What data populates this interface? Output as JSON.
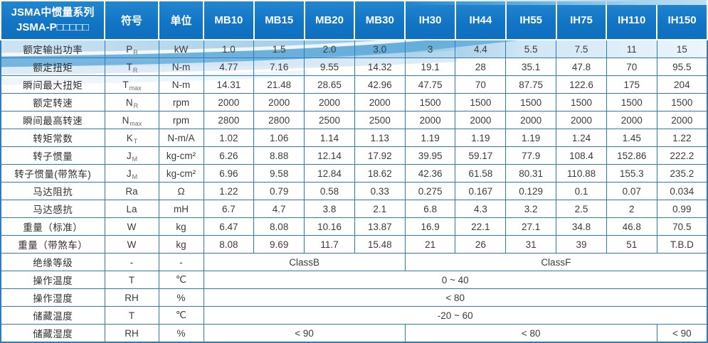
{
  "header": {
    "title_line1": "JSMA中惯量系列",
    "title_line2": "JSMA-P□□□□□",
    "symbol_col": "符号",
    "unit_col": "单位",
    "models": [
      "MB10",
      "MB15",
      "MB20",
      "MB30",
      "IH30",
      "IH44",
      "IH55",
      "IH75",
      "IH110",
      "IH150"
    ]
  },
  "colors": {
    "header_blue": "#1174c4",
    "grid_blue": "#2e7cbe",
    "swoosh_blue": "#57a5d8",
    "swoosh_light": "#cde3f2"
  },
  "spec_rows": [
    {
      "label": "额定输出功率",
      "sym": "P",
      "sub": "R",
      "unit": "kW",
      "values": [
        "1.0",
        "1.5",
        "2.0",
        "3.0",
        "3",
        "4.4",
        "5.5",
        "7.5",
        "11",
        "15"
      ]
    },
    {
      "label": "额定扭矩",
      "sym": "T",
      "sub": "R",
      "unit": "N-m",
      "values": [
        "4.77",
        "7.16",
        "9.55",
        "14.32",
        "19.1",
        "28",
        "35.1",
        "47.8",
        "70",
        "95.5"
      ]
    },
    {
      "label": "瞬间最大扭矩",
      "sym": "T",
      "sub": "max",
      "unit": "N-m",
      "values": [
        "14.31",
        "21.48",
        "28.65",
        "42.96",
        "47.75",
        "70",
        "87.75",
        "122.6",
        "175",
        "204"
      ]
    },
    {
      "label": "额定转速",
      "sym": "N",
      "sub": "R",
      "unit": "rpm",
      "values": [
        "2000",
        "2000",
        "2000",
        "2000",
        "1500",
        "1500",
        "1500",
        "1500",
        "1500",
        "1500"
      ]
    },
    {
      "label": "瞬间最高转速",
      "sym": "N",
      "sub": "max",
      "unit": "rpm",
      "values": [
        "2800",
        "2800",
        "2500",
        "2500",
        "2000",
        "2000",
        "2000",
        "2000",
        "2000",
        "2000"
      ]
    },
    {
      "label": "转矩常数",
      "sym": "K",
      "sub": "T",
      "unit": "N-m/A",
      "values": [
        "1.02",
        "1.06",
        "1.14",
        "1.13",
        "1.19",
        "1.19",
        "1.19",
        "1.24",
        "1.45",
        "1.22"
      ]
    },
    {
      "label": "转子惯量",
      "sym": "J",
      "sub": "M",
      "unit": "kg-cm²",
      "values": [
        "6.26",
        "8.88",
        "12.14",
        "17.92",
        "39.95",
        "59.17",
        "77.9",
        "108.4",
        "152.86",
        "222.2"
      ]
    },
    {
      "label": "转子惯量(带煞车)",
      "sym": "J",
      "sub": "M",
      "unit": "kg-cm²",
      "values": [
        "6.96",
        "9.58",
        "12.84",
        "18.62",
        "42.36",
        "61.58",
        "80.31",
        "110.88",
        "155.3",
        "235.2"
      ]
    },
    {
      "label": "马达阻抗",
      "sym": "Ra",
      "sub": "",
      "unit": "Ω",
      "values": [
        "1.22",
        "0.79",
        "0.58",
        "0.33",
        "0.275",
        "0.167",
        "0.129",
        "0.1",
        "0.07",
        "0.034"
      ]
    },
    {
      "label": "马达感抗",
      "sym": "La",
      "sub": "",
      "unit": "mH",
      "values": [
        "6.7",
        "4.7",
        "3.8",
        "2.1",
        "6.8",
        "4.3",
        "3.2",
        "2.5",
        "2",
        "0.99"
      ]
    },
    {
      "label": "重量（标准）",
      "sym": "W",
      "sub": "",
      "unit": "kg",
      "values": [
        "6.47",
        "8.08",
        "10.16",
        "13.87",
        "16.9",
        "22.1",
        "27.1",
        "34.8",
        "46.8",
        "70.5"
      ]
    },
    {
      "label": "重量（带煞车）",
      "sym": "W",
      "sub": "",
      "unit": "kg",
      "values": [
        "8.08",
        "9.69",
        "11.7",
        "15.48",
        "21",
        "26",
        "31",
        "39",
        "51",
        "T.B.D"
      ]
    }
  ],
  "env_rows": [
    {
      "label": "绝缘等级",
      "sym": "-",
      "sub": "",
      "unit": "-",
      "cells": [
        {
          "text": "ClassB",
          "span": 4
        },
        {
          "text": "ClassF",
          "span": 6
        }
      ]
    },
    {
      "label": "操作温度",
      "sym": "T",
      "sub": "",
      "unit": "℃",
      "cells": [
        {
          "text": "0 ~ 40",
          "span": 10
        }
      ]
    },
    {
      "label": "操作湿度",
      "sym": "RH",
      "sub": "",
      "unit": "%",
      "cells": [
        {
          "text": "< 80",
          "span": 10
        }
      ]
    },
    {
      "label": "储藏温度",
      "sym": "T",
      "sub": "",
      "unit": "℃",
      "cells": [
        {
          "text": "-20 ~ 60",
          "span": 10
        }
      ]
    },
    {
      "label": "储藏湿度",
      "sym": "RH",
      "sub": "",
      "unit": "%",
      "cells": [
        {
          "text": "< 90",
          "span": 4
        },
        {
          "text": "< 80",
          "span": 5
        },
        {
          "text": "< 90",
          "span": 1
        }
      ]
    }
  ]
}
